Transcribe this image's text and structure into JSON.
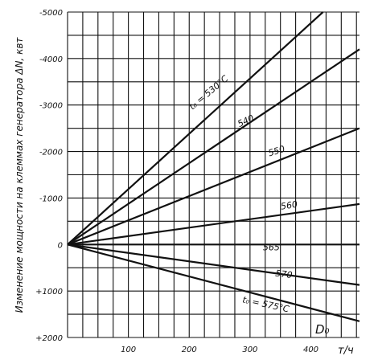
{
  "chart_data": {
    "type": "line",
    "title": "",
    "ylabel": "Изменение мощности на клеммах генератора ΔN, квт",
    "xlabel": "т/ч",
    "x_annotation": "D₀",
    "xlim": [
      0,
      480
    ],
    "ylim": [
      -5000,
      2000
    ],
    "x_ticks": [
      {
        "value": 100,
        "label": "100"
      },
      {
        "value": 200,
        "label": "200"
      },
      {
        "value": 300,
        "label": "300"
      },
      {
        "value": 400,
        "label": "400"
      }
    ],
    "y_ticks": [
      {
        "value": -5000,
        "label": "-5000"
      },
      {
        "value": -4000,
        "label": "-4000"
      },
      {
        "value": -3000,
        "label": "-3000"
      },
      {
        "value": -2000,
        "label": "-2000"
      },
      {
        "value": -1000,
        "label": "-1000"
      },
      {
        "value": 0,
        "label": "0"
      },
      {
        "value": 1000,
        "label": "+1000"
      },
      {
        "value": 2000,
        "label": "+2000"
      }
    ],
    "grid": true,
    "series": [
      {
        "name": "t₀ = 530°C",
        "x": [
          0,
          420
        ],
        "y": [
          0,
          -5000
        ]
      },
      {
        "name": "540",
        "x": [
          0,
          480
        ],
        "y": [
          0,
          -4200
        ]
      },
      {
        "name": "550",
        "x": [
          0,
          480
        ],
        "y": [
          0,
          -2500
        ]
      },
      {
        "name": "560",
        "x": [
          0,
          480
        ],
        "y": [
          0,
          -870
        ]
      },
      {
        "name": "565",
        "x": [
          0,
          480
        ],
        "y": [
          0,
          0
        ]
      },
      {
        "name": "570",
        "x": [
          0,
          480
        ],
        "y": [
          0,
          870
        ]
      },
      {
        "name": "t₀ = 575°C",
        "x": [
          0,
          480
        ],
        "y": [
          0,
          1650
        ]
      }
    ],
    "series_label_positions": [
      {
        "x": 235,
        "y": -3220,
        "angle": -40
      },
      {
        "x": 295,
        "y": -2600,
        "angle": -25
      },
      {
        "x": 345,
        "y": -1950,
        "angle": -17
      },
      {
        "x": 365,
        "y": -780,
        "angle": -9
      },
      {
        "x": 335,
        "y": 125,
        "angle": 0
      },
      {
        "x": 355,
        "y": 700,
        "angle": 7
      },
      {
        "x": 325,
        "y": 1350,
        "angle": 12
      }
    ]
  }
}
